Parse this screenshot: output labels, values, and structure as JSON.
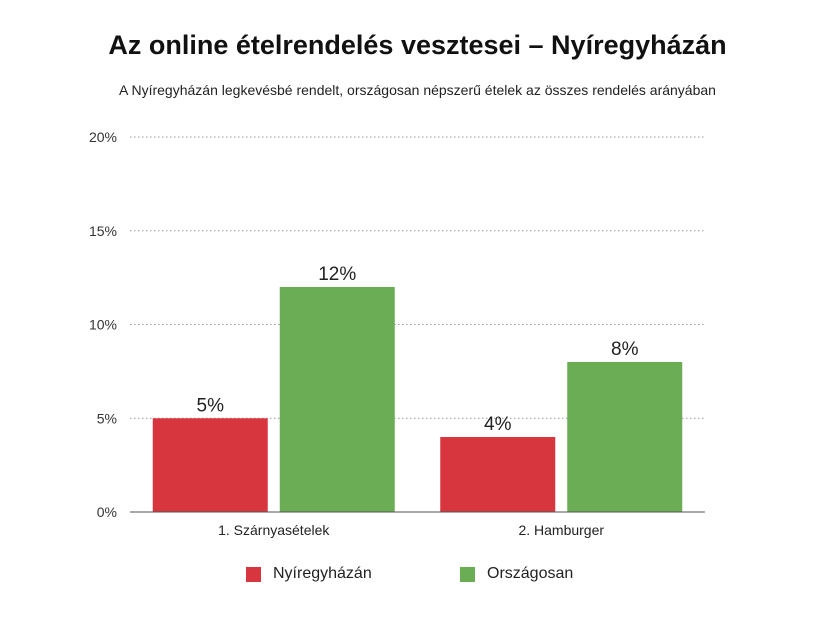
{
  "title": "Az online ételrendelés vesztesei – Nyíregyházán",
  "subtitle": "A Nyíregyházán legkevésbé rendelt, országosan népszerű ételek az összes rendelés arányában",
  "chart_data": {
    "type": "bar",
    "categories": [
      "1. Szárnyasételek",
      "2. Hamburger"
    ],
    "series": [
      {
        "name": "Nyíregyházán",
        "values": [
          5,
          4
        ],
        "labels": [
          "5%",
          "4%"
        ],
        "color": "#d8363f"
      },
      {
        "name": "Országosan",
        "values": [
          12,
          8
        ],
        "labels": [
          "12%",
          "8%"
        ],
        "color": "#6aad55"
      }
    ],
    "ylim": [
      0,
      20
    ],
    "yticks": [
      0,
      5,
      10,
      15,
      20
    ],
    "ytick_labels": [
      "0%",
      "5%",
      "10%",
      "15%",
      "20%"
    ],
    "grid": true,
    "legend_position": "bottom"
  }
}
